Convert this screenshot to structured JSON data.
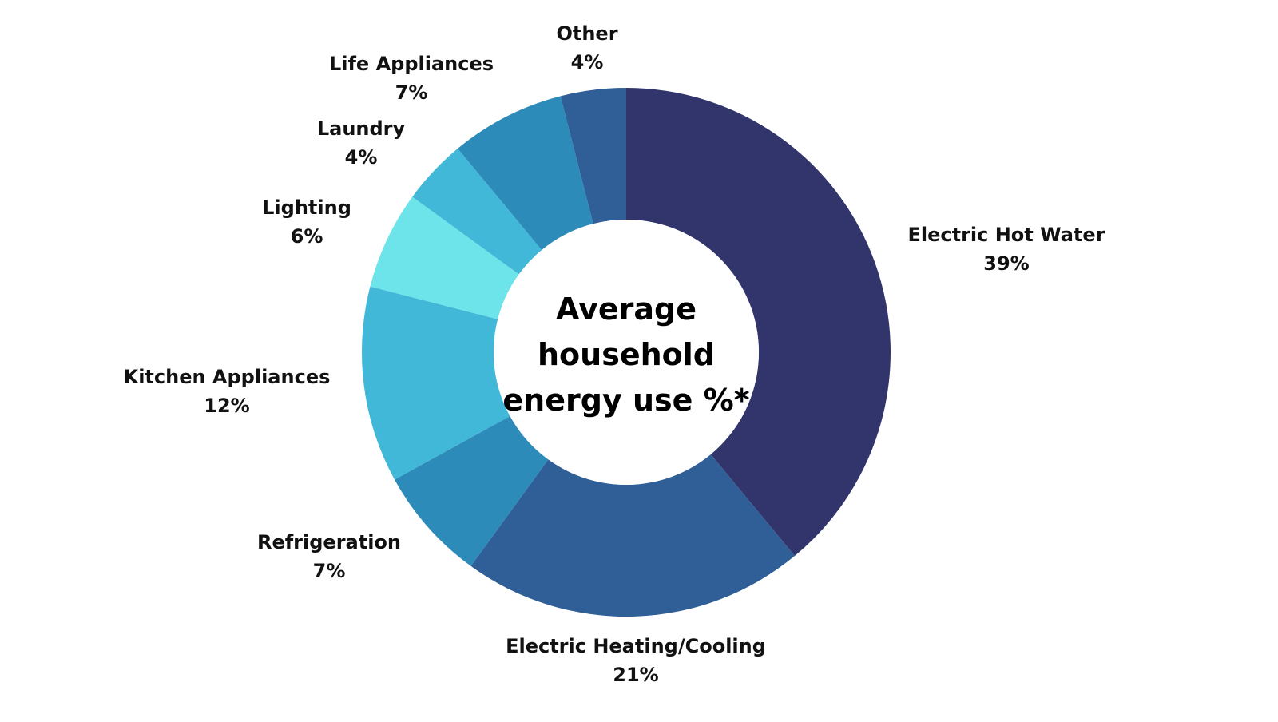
{
  "chart_data": {
    "type": "pie",
    "donut": true,
    "title": "Average household energy use %*",
    "title_lines": [
      "Average",
      "household",
      "energy use %*"
    ],
    "start": "12 o'clock",
    "direction": "clockwise",
    "legend": "none (labels beside slices)",
    "slices": [
      {
        "name": "Electric Hot Water",
        "value": 39,
        "label": "39%",
        "color": "#32356c"
      },
      {
        "name": "Electric Heating/Cooling",
        "value": 21,
        "label": "21%",
        "color": "#305f97"
      },
      {
        "name": "Refrigeration",
        "value": 7,
        "label": "7%",
        "color": "#2d8bba"
      },
      {
        "name": "Kitchen Appliances",
        "value": 12,
        "label": "12%",
        "color": "#42b8d8"
      },
      {
        "name": "Lighting",
        "value": 6,
        "label": "6%",
        "color": "#6de4e9"
      },
      {
        "name": "Laundry",
        "value": 4,
        "label": "4%",
        "color": "#42b8d8"
      },
      {
        "name": "Life Appliances",
        "value": 7,
        "label": "7%",
        "color": "#2d8bba"
      },
      {
        "name": "Other",
        "value": 4,
        "label": "4%",
        "color": "#305f97"
      }
    ]
  }
}
